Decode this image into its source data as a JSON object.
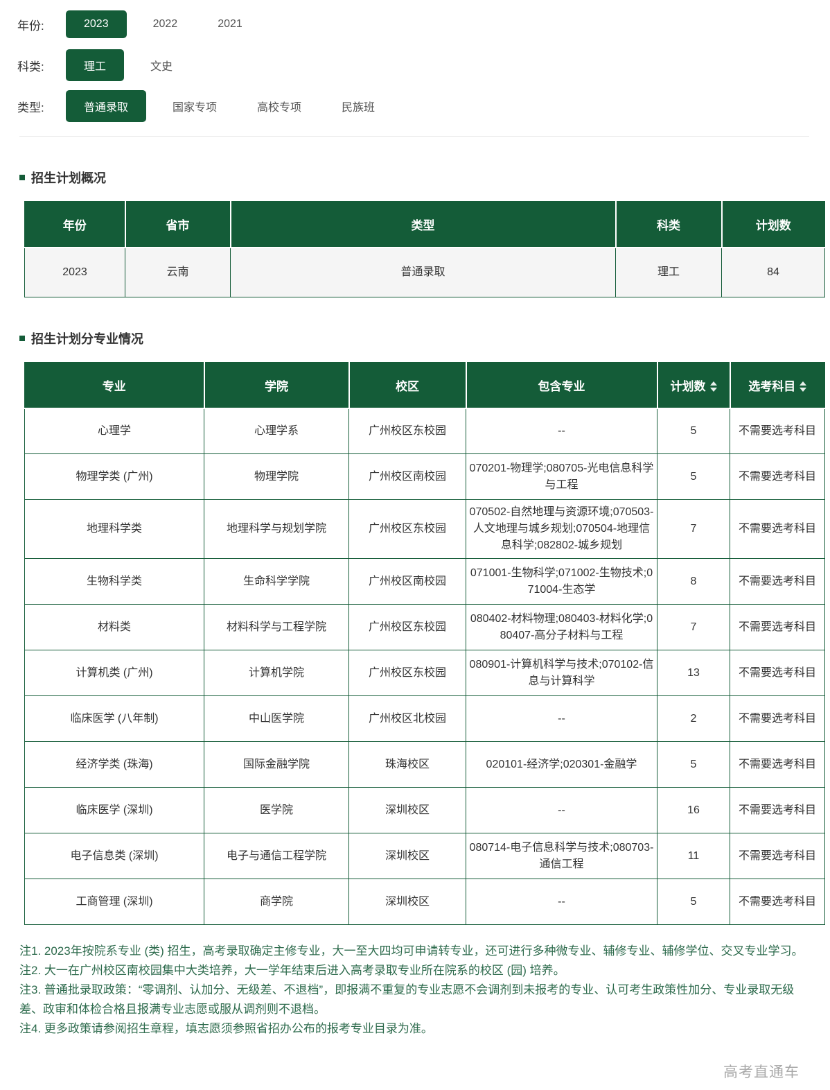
{
  "filters": {
    "year": {
      "label": "年份:",
      "options": [
        "2023",
        "2022",
        "2021"
      ],
      "selected": "2023"
    },
    "subject": {
      "label": "科类:",
      "options": [
        "理工",
        "文史"
      ],
      "selected": "理工"
    },
    "type": {
      "label": "类型:",
      "options": [
        "普通录取",
        "国家专项",
        "高校专项",
        "民族班"
      ],
      "selected": "普通录取"
    }
  },
  "overview": {
    "title": "招生计划概况",
    "table": {
      "headers": [
        "年份",
        "省市",
        "类型",
        "科类",
        "计划数"
      ],
      "rows": [
        [
          "2023",
          "云南",
          "普通录取",
          "理工",
          "84"
        ]
      ]
    }
  },
  "majors": {
    "title": "招生计划分专业情况",
    "table": {
      "headers": [
        "专业",
        "学院",
        "校区",
        "包含专业",
        "计划数",
        "选考科目"
      ],
      "rows": [
        [
          "心理学",
          "心理学系",
          "广州校区东校园",
          "--",
          "5",
          "不需要选考科目"
        ],
        [
          "物理学类 (广州)",
          "物理学院",
          "广州校区南校园",
          "070201-物理学;080705-光电信息科学与工程",
          "5",
          "不需要选考科目"
        ],
        [
          "地理科学类",
          "地理科学与规划学院",
          "广州校区东校园",
          "070502-自然地理与资源环境;070503-人文地理与城乡规划;070504-地理信息科学;082802-城乡规划",
          "7",
          "不需要选考科目"
        ],
        [
          "生物科学类",
          "生命科学学院",
          "广州校区南校园",
          "071001-生物科学;071002-生物技术;071004-生态学",
          "8",
          "不需要选考科目"
        ],
        [
          "材料类",
          "材料科学与工程学院",
          "广州校区东校园",
          "080402-材料物理;080403-材料化学;080407-高分子材料与工程",
          "7",
          "不需要选考科目"
        ],
        [
          "计算机类 (广州)",
          "计算机学院",
          "广州校区东校园",
          "080901-计算机科学与技术;070102-信息与计算科学",
          "13",
          "不需要选考科目"
        ],
        [
          "临床医学 (八年制)",
          "中山医学院",
          "广州校区北校园",
          "--",
          "2",
          "不需要选考科目"
        ],
        [
          "经济学类 (珠海)",
          "国际金融学院",
          "珠海校区",
          "020101-经济学;020301-金融学",
          "5",
          "不需要选考科目"
        ],
        [
          "临床医学 (深圳)",
          "医学院",
          "深圳校区",
          "--",
          "16",
          "不需要选考科目"
        ],
        [
          "电子信息类 (深圳)",
          "电子与通信工程学院",
          "深圳校区",
          "080714-电子信息科学与技术;080703-通信工程",
          "11",
          "不需要选考科目"
        ],
        [
          "工商管理 (深圳)",
          "商学院",
          "深圳校区",
          "--",
          "5",
          "不需要选考科目"
        ]
      ]
    }
  },
  "notes": [
    "注1. 2023年按院系专业 (类) 招生，高考录取确定主修专业，大一至大四均可申请转专业，还可进行多种微专业、辅修专业、辅修学位、交叉专业学习。",
    "注2. 大一在广州校区南校园集中大类培养，大一学年结束后进入高考录取专业所在院系的校区 (园) 培养。",
    "注3. 普通批录取政策：“零调剂、认加分、无级差、不退档”，即报满不重复的专业志愿不会调剂到未报考的专业、认可考生政策性加分、专业录取无级差、政审和体检合格且报满专业志愿或服从调剂则不退档。",
    "注4. 更多政策请参阅招生章程，填志愿须参照省招办公布的报考专业目录为准。"
  ],
  "watermark": "高考直通车",
  "colors": {
    "accent_green": "#145C38",
    "note_green": "#2e6b4d",
    "row_stripe": "#f5f5f5",
    "watermark_gray": "#a8a8a8"
  }
}
